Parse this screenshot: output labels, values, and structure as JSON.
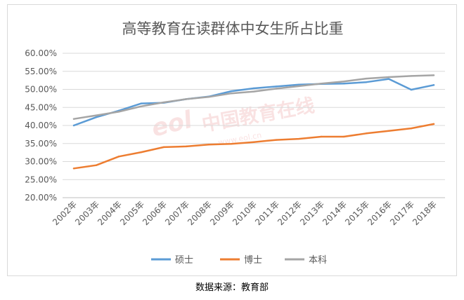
{
  "chart_data": {
    "type": "line",
    "title": "高等教育在读群体中女生所占比重",
    "xlabel": "",
    "ylabel": "",
    "categories": [
      "2002年",
      "2003年",
      "2004年",
      "2005年",
      "2006年",
      "2007年",
      "2008年",
      "2009年",
      "2010年",
      "2011年",
      "2012年",
      "2013年",
      "2014年",
      "2015年",
      "2016年",
      "2017年",
      "2018年"
    ],
    "y_ticks": [
      "20.00%",
      "25.00%",
      "30.00%",
      "35.00%",
      "40.00%",
      "45.00%",
      "50.00%",
      "55.00%",
      "60.00%"
    ],
    "ylim": [
      20,
      60
    ],
    "grid": true,
    "legend_position": "bottom",
    "series": [
      {
        "name": "硕士",
        "color": "#5b9bd5",
        "values": [
          40.0,
          42.3,
          44.1,
          46.1,
          46.3,
          47.3,
          48.0,
          49.5,
          50.3,
          50.8,
          51.3,
          51.5,
          51.6,
          52.0,
          52.9,
          49.9,
          51.2
        ]
      },
      {
        "name": "博士",
        "color": "#ed7d31",
        "values": [
          28.1,
          29.0,
          31.4,
          32.6,
          34.0,
          34.2,
          34.7,
          34.9,
          35.4,
          36.0,
          36.3,
          36.9,
          36.9,
          37.8,
          38.5,
          39.2,
          40.4
        ]
      },
      {
        "name": "本科",
        "color": "#a5a5a5",
        "values": [
          41.8,
          42.8,
          43.8,
          45.3,
          46.4,
          47.3,
          47.9,
          48.9,
          49.4,
          50.2,
          50.9,
          51.6,
          52.2,
          53.0,
          53.4,
          53.7,
          53.9
        ]
      }
    ]
  },
  "watermark": {
    "text": "中国教育在线",
    "subtext": "www.eol.cn",
    "logo": "eol"
  },
  "source_note": "数据来源：教育部"
}
